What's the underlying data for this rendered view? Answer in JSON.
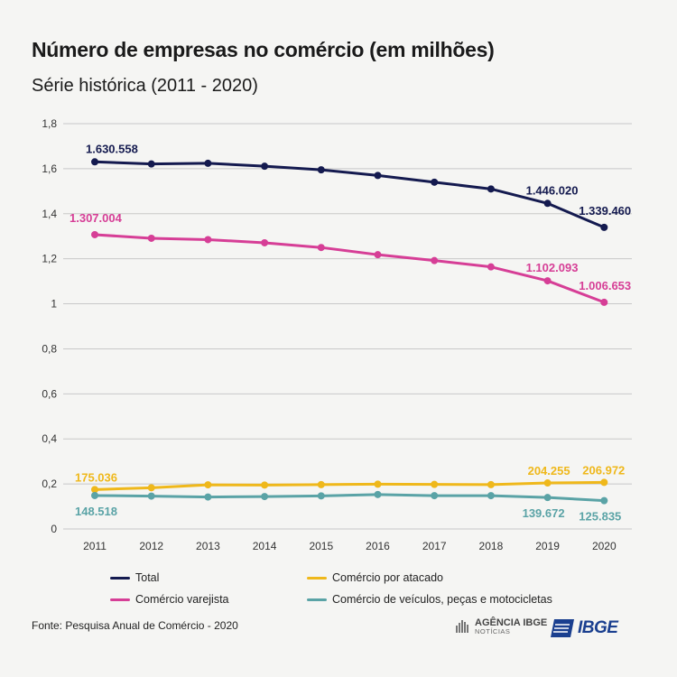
{
  "title": "Número de empresas no comércio (em milhões)",
  "subtitle": "Série histórica (2011 - 2020)",
  "source": "Fonte: Pesquisa Anual de Comércio - 2020",
  "logos": {
    "agencia_line1": "AGÊNCIA IBGE",
    "agencia_line2": "NOTÍCIAS",
    "ibge": "IBGE"
  },
  "chart_data": {
    "type": "line",
    "title": "Número de empresas no comércio (em milhões)",
    "subtitle": "Série histórica (2011 - 2020)",
    "categories": [
      "2011",
      "2012",
      "2013",
      "2014",
      "2015",
      "2016",
      "2017",
      "2018",
      "2019",
      "2020"
    ],
    "ylim": [
      0,
      1.8
    ],
    "yticks": [
      0,
      0.2,
      0.4,
      0.6,
      0.8,
      1,
      1.2,
      1.4,
      1.6,
      1.8
    ],
    "ytick_labels": [
      "0",
      "0,2",
      "0,4",
      "0,6",
      "0,8",
      "1",
      "1,2",
      "1,4",
      "1,6",
      "1,8"
    ],
    "grid": true,
    "legend_position": "bottom",
    "series": [
      {
        "name": "Total",
        "color": "#141a4f",
        "values": [
          1.630558,
          1.621,
          1.624,
          1.611,
          1.595,
          1.57,
          1.54,
          1.51,
          1.44602,
          1.33946
        ],
        "labels": [
          {
            "index": 0,
            "text": "1.630.558"
          },
          {
            "index": 8,
            "text": "1.446.020"
          },
          {
            "index": 9,
            "text": "1.339.460"
          }
        ]
      },
      {
        "name": "Comércio varejista",
        "color": "#d63e96",
        "values": [
          1.307004,
          1.291,
          1.285,
          1.271,
          1.25,
          1.218,
          1.192,
          1.164,
          1.102093,
          1.006653
        ],
        "labels": [
          {
            "index": 0,
            "text": "1.307.004"
          },
          {
            "index": 8,
            "text": "1.102.093"
          },
          {
            "index": 9,
            "text": "1.006.653"
          }
        ]
      },
      {
        "name": "Comércio por atacado",
        "color": "#efb81b",
        "values": [
          0.175036,
          0.183,
          0.196,
          0.195,
          0.197,
          0.199,
          0.198,
          0.197,
          0.204255,
          0.206972
        ],
        "labels": [
          {
            "index": 0,
            "text": "175.036"
          },
          {
            "index": 8,
            "text": "204.255"
          },
          {
            "index": 9,
            "text": "206.972"
          }
        ]
      },
      {
        "name": "Comércio de veículos, peças e motocicletas",
        "color": "#5aa3a6",
        "values": [
          0.148518,
          0.146,
          0.142,
          0.144,
          0.147,
          0.153,
          0.148,
          0.148,
          0.139672,
          0.125835
        ],
        "labels": [
          {
            "index": 0,
            "text": "148.518"
          },
          {
            "index": 8,
            "text": "139.672"
          },
          {
            "index": 9,
            "text": "125.835"
          }
        ]
      }
    ]
  }
}
